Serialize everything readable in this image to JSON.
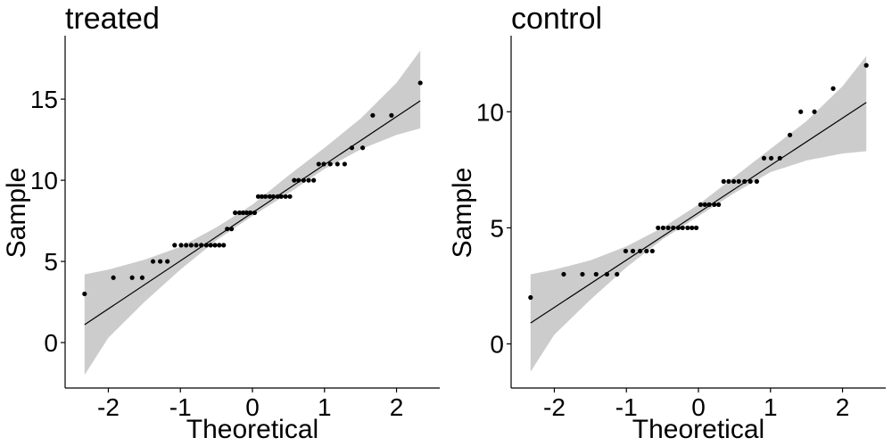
{
  "chart_data": [
    {
      "type": "scatter",
      "title": "treated",
      "xlabel": "Theoretical",
      "ylabel": "Sample",
      "xlim": [
        -2.6,
        2.6
      ],
      "ylim": [
        -2.8,
        18.8
      ],
      "xticks": [
        -2,
        -1,
        0,
        1,
        2
      ],
      "yticks": [
        0,
        5,
        10,
        15
      ],
      "ref_line": {
        "x": [
          -2.33,
          2.33
        ],
        "y": [
          1.1,
          14.9
        ]
      },
      "band": {
        "x": [
          -2.33,
          -2.0,
          -1.5,
          -1.0,
          -0.5,
          0.0,
          0.5,
          1.0,
          1.5,
          2.0,
          2.33
        ],
        "upper": [
          4.2,
          4.5,
          5.1,
          5.9,
          7.1,
          8.5,
          10.3,
          12.0,
          13.8,
          16.0,
          18.0
        ],
        "lower": [
          -2.0,
          0.3,
          2.5,
          4.5,
          6.3,
          7.8,
          9.2,
          10.7,
          11.9,
          12.8,
          13.2
        ]
      },
      "points": {
        "x": [
          -2.33,
          -1.93,
          -1.67,
          -1.53,
          -1.38,
          -1.28,
          -1.18,
          -1.08,
          -0.99,
          -0.92,
          -0.85,
          -0.78,
          -0.71,
          -0.64,
          -0.58,
          -0.52,
          -0.46,
          -0.4,
          -0.35,
          -0.29,
          -0.24,
          -0.18,
          -0.13,
          -0.08,
          -0.03,
          0.03,
          0.08,
          0.13,
          0.18,
          0.24,
          0.29,
          0.35,
          0.4,
          0.46,
          0.52,
          0.58,
          0.64,
          0.71,
          0.78,
          0.85,
          0.92,
          0.99,
          1.08,
          1.18,
          1.28,
          1.38,
          1.53,
          1.67,
          1.93,
          2.33
        ],
        "y": [
          3,
          4,
          4,
          4,
          5,
          5,
          5,
          6,
          6,
          6,
          6,
          6,
          6,
          6,
          6,
          6,
          6,
          6,
          7,
          7,
          8,
          8,
          8,
          8,
          8,
          8,
          9,
          9,
          9,
          9,
          9,
          9,
          9,
          9,
          9,
          10,
          10,
          10,
          10,
          10,
          11,
          11,
          11,
          11,
          11,
          12,
          12,
          14,
          14,
          16
        ]
      }
    },
    {
      "type": "scatter",
      "title": "control",
      "xlabel": "Theoretical",
      "ylabel": "Sample",
      "xlim": [
        -2.6,
        2.6
      ],
      "ylim": [
        -1.9,
        13.2
      ],
      "xticks": [
        -2,
        -1,
        0,
        1,
        2
      ],
      "yticks": [
        0,
        5,
        10
      ],
      "ref_line": {
        "x": [
          -2.33,
          2.33
        ],
        "y": [
          0.9,
          10.4
        ]
      },
      "band": {
        "x": [
          -2.33,
          -2.0,
          -1.5,
          -1.0,
          -0.5,
          0.0,
          0.5,
          1.0,
          1.5,
          2.0,
          2.33
        ],
        "upper": [
          3.0,
          3.2,
          3.6,
          4.2,
          5.0,
          6.0,
          7.2,
          8.4,
          9.6,
          11.1,
          12.4
        ],
        "lower": [
          -1.2,
          0.4,
          1.9,
          3.3,
          4.5,
          5.5,
          6.5,
          7.4,
          7.9,
          8.2,
          8.3
        ]
      },
      "points": {
        "x": [
          -2.33,
          -1.87,
          -1.61,
          -1.42,
          -1.27,
          -1.13,
          -1.01,
          -0.91,
          -0.81,
          -0.72,
          -0.64,
          -0.56,
          -0.49,
          -0.42,
          -0.35,
          -0.28,
          -0.22,
          -0.15,
          -0.09,
          -0.03,
          0.03,
          0.09,
          0.15,
          0.22,
          0.28,
          0.35,
          0.42,
          0.49,
          0.56,
          0.64,
          0.72,
          0.81,
          0.91,
          1.01,
          1.13,
          1.27,
          1.42,
          1.61,
          1.87,
          2.33
        ],
        "y": [
          2,
          3,
          3,
          3,
          3,
          3,
          4,
          4,
          4,
          4,
          4,
          5,
          5,
          5,
          5,
          5,
          5,
          5,
          5,
          5,
          6,
          6,
          6,
          6,
          6,
          7,
          7,
          7,
          7,
          7,
          7,
          7,
          8,
          8,
          8,
          9,
          10,
          10,
          11,
          12
        ]
      }
    }
  ]
}
